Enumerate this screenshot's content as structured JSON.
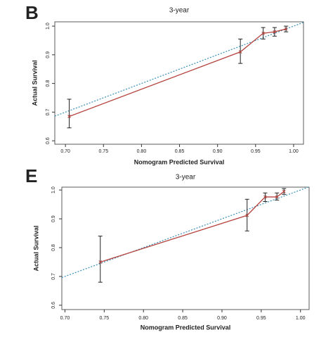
{
  "chart_data": [
    {
      "type": "line",
      "panel_label": "B",
      "title": "3-year",
      "xlabel": "Nomogram Predicted Survival",
      "ylabel": "Actual Survival",
      "xlim": [
        0.686,
        1.013
      ],
      "ylim": [
        0.588,
        1.015
      ],
      "xticks": [
        {
          "value": 0.7,
          "label": "0.70"
        },
        {
          "value": 0.75,
          "label": "0.75"
        },
        {
          "value": 0.8,
          "label": "0.80"
        },
        {
          "value": 0.85,
          "label": "0.85"
        },
        {
          "value": 0.9,
          "label": "0.90"
        },
        {
          "value": 0.95,
          "label": "0.95"
        },
        {
          "value": 1,
          "label": "1.00"
        }
      ],
      "yticks": [
        0.6,
        0.7,
        0.8,
        0.9,
        {
          "value": 1,
          "label": "1.0"
        }
      ],
      "series": [
        {
          "color": "#b5443f",
          "x": [
            0.705,
            0.93,
            0.96,
            0.975,
            0.99
          ],
          "values": [
            0.685,
            0.91,
            0.975,
            0.98,
            0.99
          ],
          "lower": [
            0.645,
            0.87,
            0.955,
            0.965,
            0.98
          ],
          "upper": [
            0.745,
            0.955,
            0.995,
            0.995,
            1.0
          ]
        }
      ],
      "reference_color": "#3a8fb7"
    },
    {
      "type": "line",
      "panel_label": "E",
      "title": "3-year",
      "xlabel": "Nomogram Predicted Survival",
      "ylabel": "Actual Survival",
      "xlim": [
        0.696,
        1.011
      ],
      "ylim": [
        0.585,
        1.01
      ],
      "xticks": [
        {
          "value": 0.7,
          "label": "0.70"
        },
        {
          "value": 0.75,
          "label": "0.75"
        },
        {
          "value": 0.8,
          "label": "0.80"
        },
        {
          "value": 0.85,
          "label": "0.85"
        },
        {
          "value": 0.9,
          "label": "0.90"
        },
        {
          "value": 0.95,
          "label": "0.95"
        },
        {
          "value": 1,
          "label": "1.00"
        }
      ],
      "yticks": [
        0.6,
        0.7,
        0.8,
        0.9,
        {
          "value": 1,
          "label": "1.0"
        }
      ],
      "series": [
        {
          "color": "#b5443f",
          "x": [
            0.745,
            0.932,
            0.955,
            0.97,
            0.979
          ],
          "values": [
            0.75,
            0.912,
            0.976,
            0.976,
            0.995
          ],
          "lower": [
            0.68,
            0.858,
            0.96,
            0.965,
            0.985
          ],
          "upper": [
            0.84,
            0.968,
            0.99,
            0.99,
            1.005
          ]
        }
      ],
      "reference_color": "#3a8fb7"
    }
  ]
}
